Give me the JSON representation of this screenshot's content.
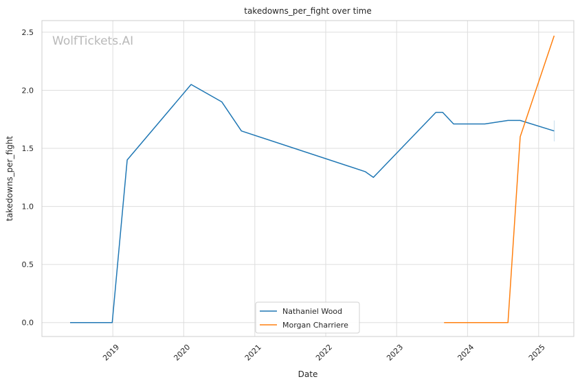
{
  "chart_data": {
    "type": "line",
    "title": "takedowns_per_fight over time",
    "xlabel": "Date",
    "ylabel": "takedowns_per_fight",
    "watermark": "WolfTickets.AI",
    "xlim": [
      "2018-01-01",
      "2025-07-01"
    ],
    "ylim": [
      -0.12,
      2.6
    ],
    "x_ticks": [
      {
        "date": "2019-01-01",
        "label": "2019"
      },
      {
        "date": "2020-01-01",
        "label": "2020"
      },
      {
        "date": "2021-01-01",
        "label": "2021"
      },
      {
        "date": "2022-01-01",
        "label": "2022"
      },
      {
        "date": "2023-01-01",
        "label": "2023"
      },
      {
        "date": "2024-01-01",
        "label": "2024"
      },
      {
        "date": "2025-01-01",
        "label": "2025"
      }
    ],
    "y_ticks": [
      {
        "value": 0.0,
        "label": "0.0"
      },
      {
        "value": 0.5,
        "label": "0.5"
      },
      {
        "value": 1.0,
        "label": "1.0"
      },
      {
        "value": 1.5,
        "label": "1.5"
      },
      {
        "value": 2.0,
        "label": "2.0"
      },
      {
        "value": 2.5,
        "label": "2.5"
      }
    ],
    "grid": true,
    "legend_position": "lower-center",
    "series": [
      {
        "name": "Nathaniel Wood",
        "color": "#1f77b4",
        "points": [
          {
            "x": "2018-05-26",
            "y": 0.0
          },
          {
            "x": "2018-12-29",
            "y": 0.0
          },
          {
            "x": "2019-03-16",
            "y": 1.4
          },
          {
            "x": "2020-02-08",
            "y": 2.05
          },
          {
            "x": "2020-07-15",
            "y": 1.9
          },
          {
            "x": "2020-10-24",
            "y": 1.65
          },
          {
            "x": "2022-07-23",
            "y": 1.3
          },
          {
            "x": "2022-09-03",
            "y": 1.25
          },
          {
            "x": "2023-07-22",
            "y": 1.81
          },
          {
            "x": "2023-08-26",
            "y": 1.81
          },
          {
            "x": "2023-10-21",
            "y": 1.71
          },
          {
            "x": "2024-03-30",
            "y": 1.71
          },
          {
            "x": "2024-07-27",
            "y": 1.74
          },
          {
            "x": "2024-09-28",
            "y": 1.74
          },
          {
            "x": "2025-03-22",
            "y": 1.65
          }
        ],
        "error_bar": {
          "x": "2025-03-22",
          "low": 1.56,
          "high": 1.74
        }
      },
      {
        "name": "Morgan Charriere",
        "color": "#ff7f0e",
        "points": [
          {
            "x": "2023-09-02",
            "y": 0.0
          },
          {
            "x": "2024-07-27",
            "y": 0.0
          },
          {
            "x": "2024-09-28",
            "y": 1.6
          },
          {
            "x": "2025-03-22",
            "y": 2.47
          }
        ]
      }
    ]
  }
}
